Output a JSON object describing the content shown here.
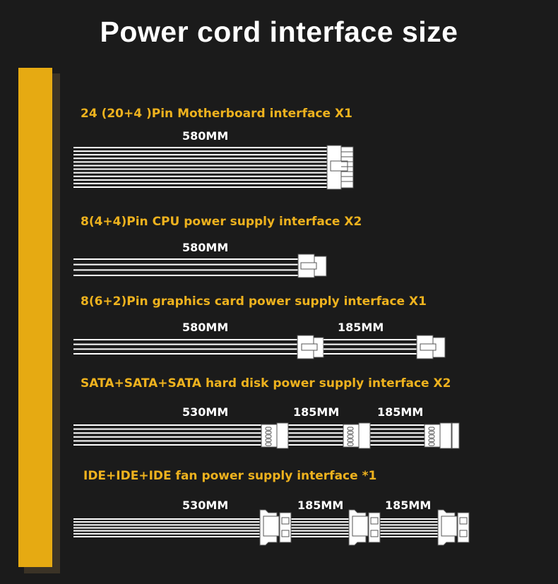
{
  "title": "Power cord  interface size",
  "accent_color": "#e6aa12",
  "label_color": "#eeb21e",
  "sections": [
    {
      "label": "24 (20+4 )Pin Motherboard interface X1",
      "lengths": [
        "580MM"
      ]
    },
    {
      "label": "8(4+4)Pin CPU power supply interface X2",
      "lengths": [
        "580MM"
      ]
    },
    {
      "label": "8(6+2)Pin graphics card power supply interface X1",
      "lengths": [
        "580MM",
        "185MM"
      ]
    },
    {
      "label": "SATA+SATA+SATA hard disk power supply interface X2",
      "lengths": [
        "530MM",
        "185MM",
        "185MM"
      ]
    },
    {
      "label": "IDE+IDE+IDE fan power supply interface *1",
      "lengths": [
        "530MM",
        "185MM",
        "185MM"
      ]
    }
  ]
}
